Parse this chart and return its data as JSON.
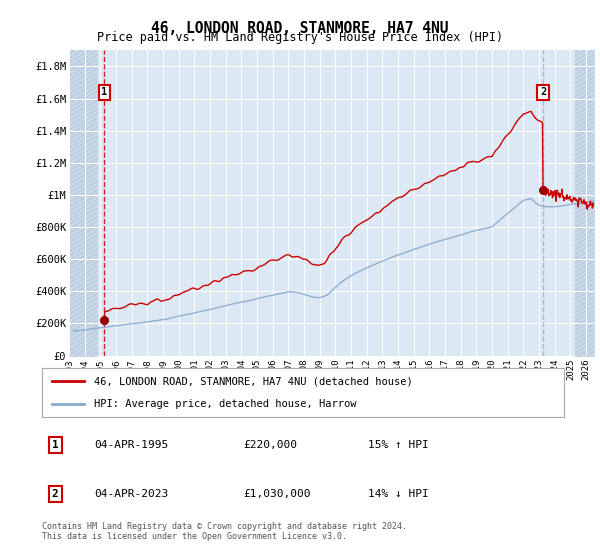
{
  "title": "46, LONDON ROAD, STANMORE, HA7 4NU",
  "subtitle": "Price paid vs. HM Land Registry's House Price Index (HPI)",
  "background_color": "#dce9f5",
  "plot_bg_color": "#dce9f5",
  "grid_color": "#ffffff",
  "sale1_date": 1995.26,
  "sale1_price": 220000,
  "sale2_date": 2023.26,
  "sale2_price": 1030000,
  "ylim": [
    0,
    1900000
  ],
  "xlim_start": 1993.0,
  "xlim_end": 2026.5,
  "yticks": [
    0,
    200000,
    400000,
    600000,
    800000,
    1000000,
    1200000,
    1400000,
    1600000,
    1800000
  ],
  "ytick_labels": [
    "£0",
    "£200K",
    "£400K",
    "£600K",
    "£800K",
    "£1M",
    "£1.2M",
    "£1.4M",
    "£1.6M",
    "£1.8M"
  ],
  "xticks": [
    1993,
    1994,
    1995,
    1996,
    1997,
    1998,
    1999,
    2000,
    2001,
    2002,
    2003,
    2004,
    2005,
    2006,
    2007,
    2008,
    2009,
    2010,
    2011,
    2012,
    2013,
    2014,
    2015,
    2016,
    2017,
    2018,
    2019,
    2020,
    2021,
    2022,
    2023,
    2024,
    2025,
    2026
  ],
  "line1_color": "#cc0000",
  "line2_color": "#88aacc",
  "marker_color": "#990000",
  "dashed_line_color": "#cc0000",
  "dashed_line2_color": "#aaaacc",
  "legend_label1": "46, LONDON ROAD, STANMORE, HA7 4NU (detached house)",
  "legend_label2": "HPI: Average price, detached house, Harrow",
  "annotation1_date": "04-APR-1995",
  "annotation1_price": "£220,000",
  "annotation1_hpi": "15% ↑ HPI",
  "annotation2_date": "04-APR-2023",
  "annotation2_price": "£1,030,000",
  "annotation2_hpi": "14% ↓ HPI",
  "footer": "Contains HM Land Registry data © Crown copyright and database right 2024.\nThis data is licensed under the Open Government Licence v3.0.",
  "hatch_left_end": 1994.8,
  "hatch_right_start": 2025.3,
  "hatch_bg_color": "#c8d8e8"
}
